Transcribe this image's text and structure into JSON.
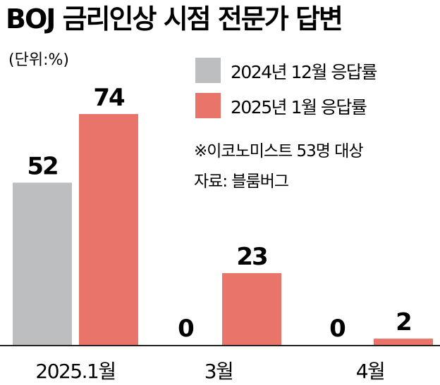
{
  "chart_data": {
    "type": "bar",
    "title": "BOJ 금리인상 시점 전문가 답변",
    "unit_label": "(단위:%)",
    "categories": [
      "2025.1월",
      "3월",
      "4월"
    ],
    "series": [
      {
        "name": "2024년 12월 응답률",
        "color": "#bcbec0",
        "values": [
          52,
          0,
          0
        ]
      },
      {
        "name": "2025년 1월 응답률",
        "color": "#e8746a",
        "values": [
          74,
          23,
          2
        ]
      }
    ],
    "ylim": [
      0,
      74
    ],
    "legend_position": "top-right",
    "notes": [
      "※이코노미스트 53명 대상",
      "자료: 블룸버그"
    ]
  }
}
